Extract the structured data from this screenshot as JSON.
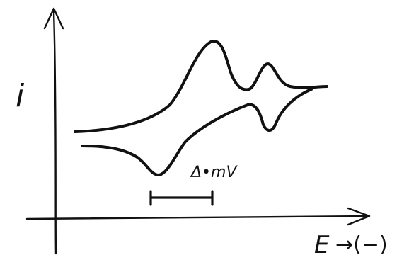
{
  "diagram": {
    "y_axis_label": "i",
    "x_axis_label": "E",
    "x_axis_direction": "→(−)",
    "scale_bar_label": "Δ•mV"
  },
  "colors": {
    "ink": "#111111",
    "background": "#ffffff"
  }
}
